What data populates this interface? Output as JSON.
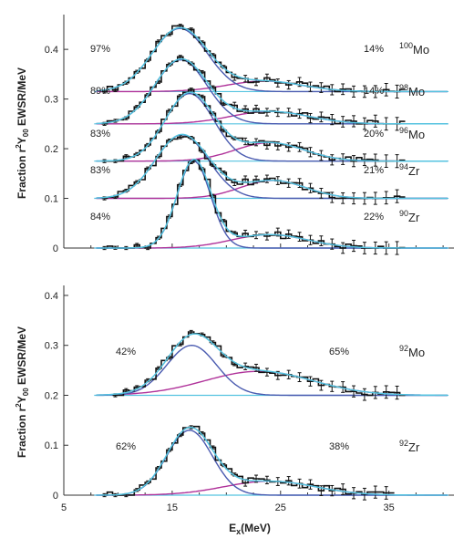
{
  "colors": {
    "data": "#111111",
    "total_fit": "#55c3e0",
    "gdr_component": "#4a5bb0",
    "high_component": "#b0329a",
    "axis": "#333333"
  },
  "chart_data": [
    {
      "type": "line",
      "panel": "top",
      "xlabel": "",
      "ylabel": "Fraction r²Y₀₀ EWSR/MeV",
      "ylabel_parts": {
        "pre": "Fraction r",
        "sup": "2",
        "mid": "Y",
        "sub": "00",
        "post": " EWSR/MeV"
      },
      "xlim": [
        5,
        41
      ],
      "ylim": [
        0,
        0.47
      ],
      "yticks": [
        0,
        0.1,
        0.2,
        0.3,
        0.4
      ],
      "ytick_labels": [
        "0",
        "0.1",
        "0.2",
        "0.3",
        "0.4"
      ],
      "series": [
        {
          "nucleus_mass": "100",
          "nucleus_symbol": "Mo",
          "low_percent": "97%",
          "high_percent": "14%",
          "baseline": 0.315,
          "gdr": {
            "amp": 0.127,
            "centroid": 15.7,
            "width": 2.55
          },
          "high": {
            "amp": 0.021,
            "centroid": 23.5,
            "width": 3.5
          },
          "x_range": [
            8.5,
            36
          ]
        },
        {
          "nucleus_mass": "98",
          "nucleus_symbol": "Mo",
          "low_percent": "89%",
          "high_percent": "14%",
          "baseline": 0.25,
          "gdr": {
            "amp": 0.129,
            "centroid": 15.8,
            "width": 2.4
          },
          "high": {
            "amp": 0.025,
            "centroid": 24.0,
            "width": 3.6
          },
          "x_range": [
            8.5,
            36
          ]
        },
        {
          "nucleus_mass": "96",
          "nucleus_symbol": "Mo",
          "low_percent": "83%",
          "high_percent": "20%",
          "baseline": 0.175,
          "gdr": {
            "amp": 0.136,
            "centroid": 16.6,
            "width": 2.25
          },
          "high": {
            "amp": 0.037,
            "centroid": 24.0,
            "width": 3.2
          },
          "x_range": [
            8.5,
            36
          ]
        },
        {
          "nucleus_mass": "94",
          "nucleus_symbol": "Zr",
          "low_percent": "83%",
          "high_percent": "21%",
          "baseline": 0.1,
          "gdr": {
            "amp": 0.128,
            "centroid": 15.9,
            "width": 2.45
          },
          "high": {
            "amp": 0.036,
            "centroid": 24.3,
            "width": 3.0
          },
          "x_range": [
            8.5,
            36
          ]
        },
        {
          "nucleus_mass": "90",
          "nucleus_symbol": "Zr",
          "low_percent": "84%",
          "high_percent": "22%",
          "baseline": 0.0,
          "gdr": {
            "amp": 0.175,
            "centroid": 17.0,
            "width": 1.55
          },
          "high": {
            "amp": 0.027,
            "centroid": 24.0,
            "width": 3.5
          },
          "x_range": [
            8.5,
            36
          ]
        }
      ]
    },
    {
      "type": "line",
      "panel": "bottom",
      "xlabel": "Ex(MeV)",
      "xlabel_parts": {
        "pre": "E",
        "sub": "x",
        "post": "(MeV)"
      },
      "ylabel": "Fraction r²Y₀₀ EWSR/MeV",
      "ylabel_parts": {
        "pre": "Fraction r",
        "sup": "2",
        "mid": "Y",
        "sub": "00",
        "post": " EWSR/MeV"
      },
      "xlim": [
        5,
        41
      ],
      "ylim": [
        0,
        0.42
      ],
      "xticks": [
        5,
        15,
        25,
        35
      ],
      "xtick_labels": [
        "5",
        "15",
        "25",
        "35"
      ],
      "yticks": [
        0,
        0.1,
        0.2,
        0.3,
        0.4
      ],
      "ytick_labels": [
        "0",
        "0.1",
        "0.2",
        "0.3",
        "0.4"
      ],
      "series": [
        {
          "nucleus_mass": "92",
          "nucleus_symbol": "Mo",
          "low_percent": "42%",
          "high_percent": "65%",
          "baseline": 0.2,
          "gdr": {
            "amp": 0.1,
            "centroid": 16.8,
            "width": 2.3
          },
          "high": {
            "amp": 0.048,
            "centroid": 23.0,
            "width": 5.0
          },
          "x_range": [
            9.5,
            36
          ]
        },
        {
          "nucleus_mass": "92",
          "nucleus_symbol": "Zr",
          "low_percent": "62%",
          "high_percent": "38%",
          "baseline": 0.0,
          "gdr": {
            "amp": 0.13,
            "centroid": 16.6,
            "width": 2.1
          },
          "high": {
            "amp": 0.028,
            "centroid": 24.0,
            "width": 4.2
          },
          "x_range": [
            8.5,
            35
          ]
        }
      ]
    }
  ]
}
